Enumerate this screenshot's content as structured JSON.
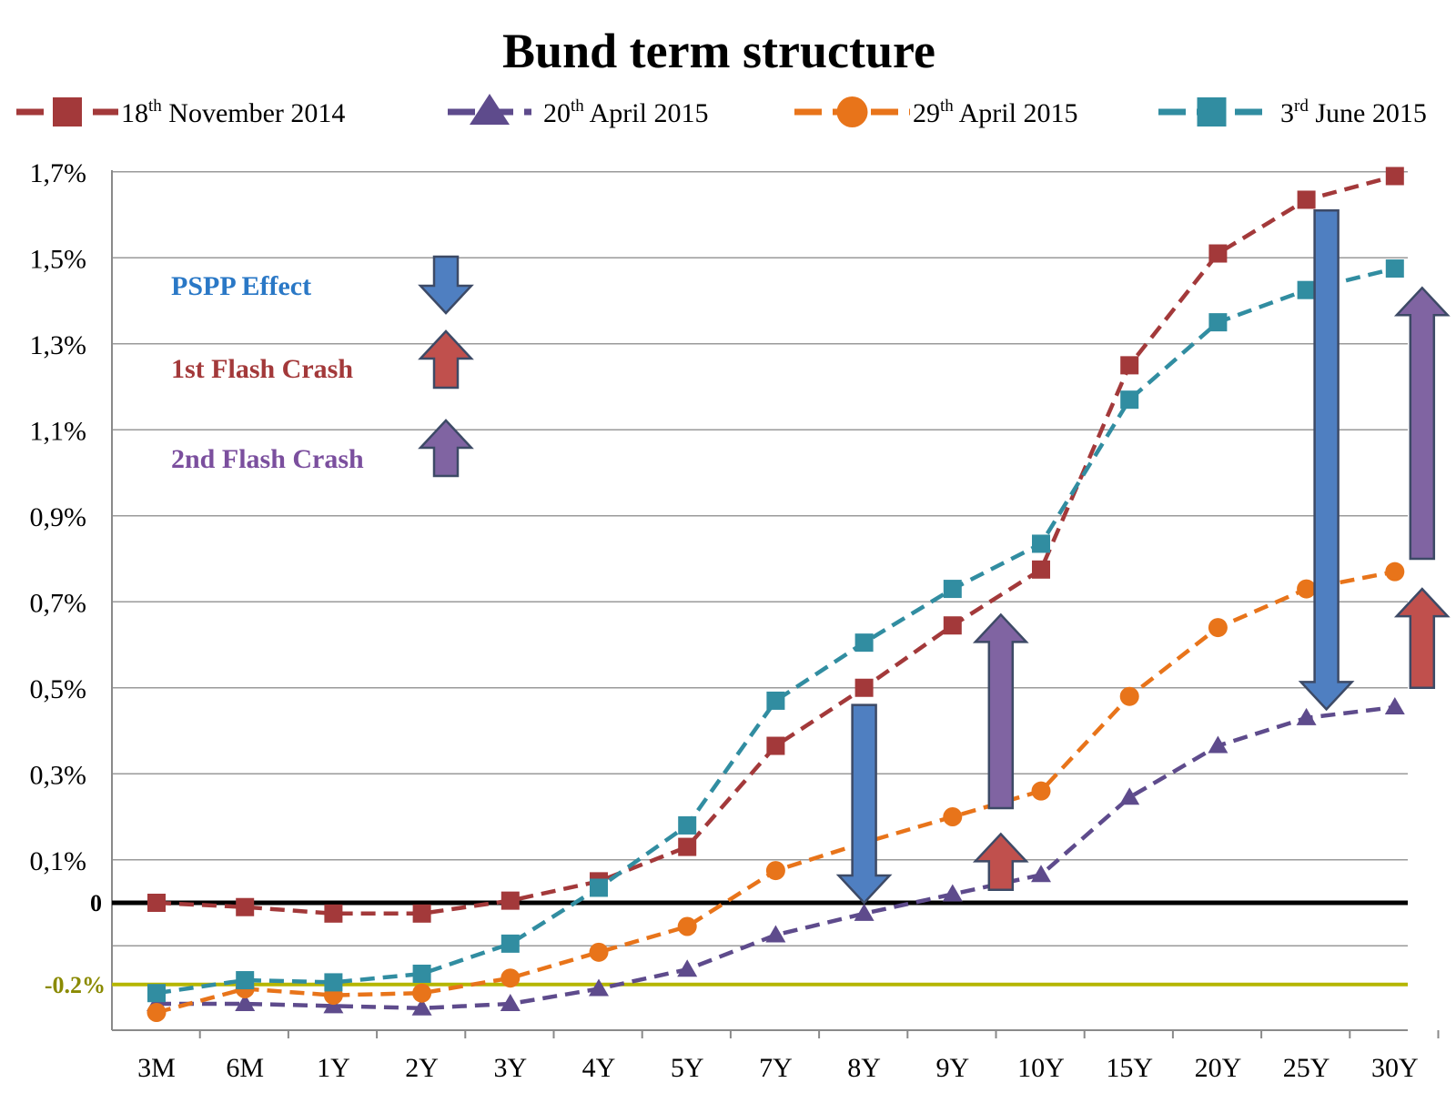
{
  "chart_data": {
    "type": "line",
    "title": "Bund term structure",
    "xlabel": "",
    "ylabel": "",
    "categories": [
      "3M",
      "6M",
      "1Y",
      "2Y",
      "3Y",
      "4Y",
      "5Y",
      "7Y",
      "8Y",
      "9Y",
      "10Y",
      "15Y",
      "20Y",
      "25Y",
      "30Y"
    ],
    "y_ticks": [
      {
        "value": 1.7,
        "label": "1,7%"
      },
      {
        "value": 1.5,
        "label": "1,5%"
      },
      {
        "value": 1.3,
        "label": "1,3%"
      },
      {
        "value": 1.1,
        "label": "1,1%"
      },
      {
        "value": 0.9,
        "label": "0,9%"
      },
      {
        "value": 0.7,
        "label": "0,7%"
      },
      {
        "value": 0.5,
        "label": "0,5%"
      },
      {
        "value": 0.3,
        "label": "0,3%"
      },
      {
        "value": 0.1,
        "label": "0,1%"
      }
    ],
    "ylim": [
      -0.3,
      1.7
    ],
    "zero_line": {
      "value": 0,
      "label": "0",
      "color": "#000000"
    },
    "reference_line": {
      "value": -0.19,
      "label": "-0.2%",
      "color": "#b5b600",
      "label_color": "#8a8a00"
    },
    "grid": true,
    "legend_position": "top",
    "series": [
      {
        "name": "18th November 2014",
        "base": "18",
        "sup": "th",
        "rest": " November 2014",
        "color": "#a3393a",
        "marker": "square",
        "values": [
          0.0,
          -0.01,
          -0.025,
          -0.025,
          0.005,
          0.05,
          0.13,
          0.365,
          0.5,
          0.645,
          0.775,
          1.25,
          1.51,
          1.635,
          1.69
        ]
      },
      {
        "name": "20th April 2015",
        "base": "20",
        "sup": "th",
        "rest": " April 2015",
        "color": "#5e4b8c",
        "marker": "triangle",
        "values": [
          -0.235,
          -0.235,
          -0.24,
          -0.245,
          -0.235,
          -0.2,
          -0.155,
          -0.075,
          -0.025,
          0.02,
          0.065,
          0.245,
          0.365,
          0.43,
          0.455
        ]
      },
      {
        "name": "29th April 2015",
        "base": "29",
        "sup": "th",
        "rest": " April 2015",
        "color": "#e8741a",
        "marker": "circle",
        "values": [
          -0.255,
          -0.2,
          -0.215,
          -0.21,
          -0.175,
          -0.115,
          -0.055,
          0.075,
          0.14,
          0.2,
          0.26,
          0.48,
          0.64,
          0.73,
          0.77
        ]
      },
      {
        "name": "3rd June 2015",
        "base": "3",
        "sup": "rd",
        "rest": " June 2015",
        "color": "#318da1",
        "marker": "square",
        "values": [
          -0.21,
          -0.18,
          -0.185,
          -0.165,
          -0.095,
          0.035,
          0.18,
          0.47,
          0.605,
          0.73,
          0.835,
          1.17,
          1.35,
          1.425,
          1.475
        ]
      }
    ],
    "annotations": [
      {
        "text": "PSPP Effect",
        "color": "#2a78c6",
        "arrow_color": "#4f7fc1",
        "direction": "down"
      },
      {
        "text": "1st Flash Crash",
        "color": "#a3393a",
        "arrow_color": "#c0504d",
        "direction": "up"
      },
      {
        "text": "2nd Flash Crash",
        "color": "#7b4f9e",
        "arrow_color": "#8064a2",
        "direction": "up"
      }
    ],
    "chart_arrows": [
      {
        "effect": "PSPP Effect",
        "category": "8Y",
        "from": 0.46,
        "to": 0.0
      },
      {
        "effect": "2nd Flash Crash",
        "category": "9Y",
        "from": 0.22,
        "to": 0.67
      },
      {
        "effect": "1st Flash Crash",
        "category": "9Y",
        "from": 0.03,
        "to": 0.16
      },
      {
        "effect": "PSPP Effect",
        "category": "25Y",
        "from": 1.61,
        "to": 0.45
      },
      {
        "effect": "2nd Flash Crash",
        "category": "30Y",
        "from": 0.8,
        "to": 1.43
      },
      {
        "effect": "1st Flash Crash",
        "category": "30Y",
        "from": 0.5,
        "to": 0.73
      }
    ]
  }
}
